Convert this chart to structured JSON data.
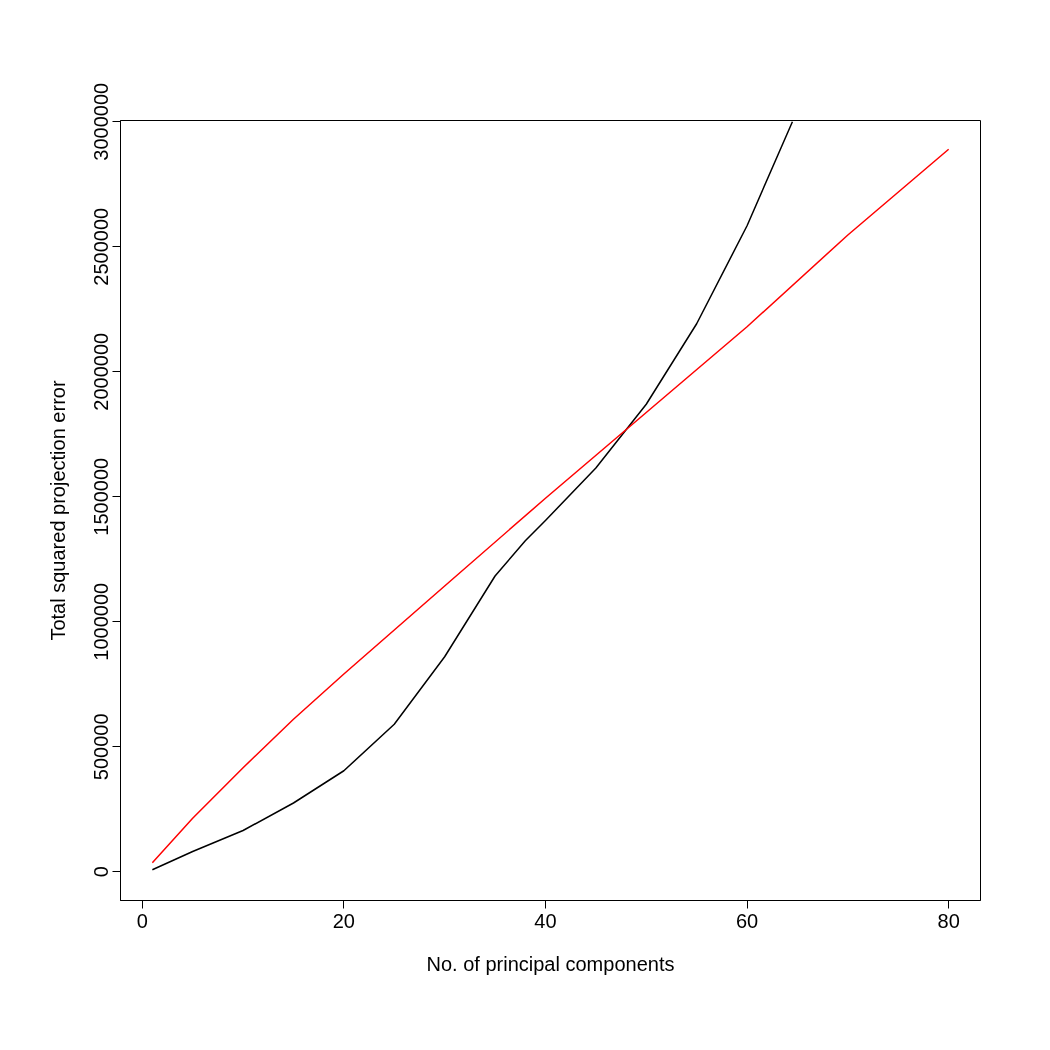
{
  "chart_data": {
    "type": "line",
    "xlabel": "No. of principal components",
    "ylabel": "Total squared projection error",
    "xlim": [
      -2.16,
      83.16
    ],
    "ylim": [
      -115000,
      3005000
    ],
    "xticks": [
      0,
      20,
      40,
      60,
      80
    ],
    "yticks": [
      0,
      500000,
      1000000,
      1500000,
      2000000,
      2500000,
      3000000
    ],
    "grid": false,
    "marker": "none",
    "line_style": "solid",
    "series": [
      {
        "color": "#000000",
        "x": [
          1,
          5,
          10,
          15,
          20,
          25,
          30,
          35,
          38,
          40,
          45,
          50,
          55,
          60,
          64.5
        ],
        "values": [
          8000,
          81000,
          165000,
          275000,
          404000,
          590000,
          860000,
          1183000,
          1324000,
          1405000,
          1615000,
          1870000,
          2192000,
          2584000,
          3000000
        ]
      },
      {
        "color": "#ff0000",
        "x": [
          1,
          5,
          10,
          15,
          20,
          30,
          40,
          50,
          60,
          70,
          80
        ],
        "values": [
          36000,
          214000,
          416000,
          610000,
          791000,
          1143000,
          1494000,
          1837000,
          2180000,
          2547000,
          2890000
        ]
      }
    ]
  }
}
